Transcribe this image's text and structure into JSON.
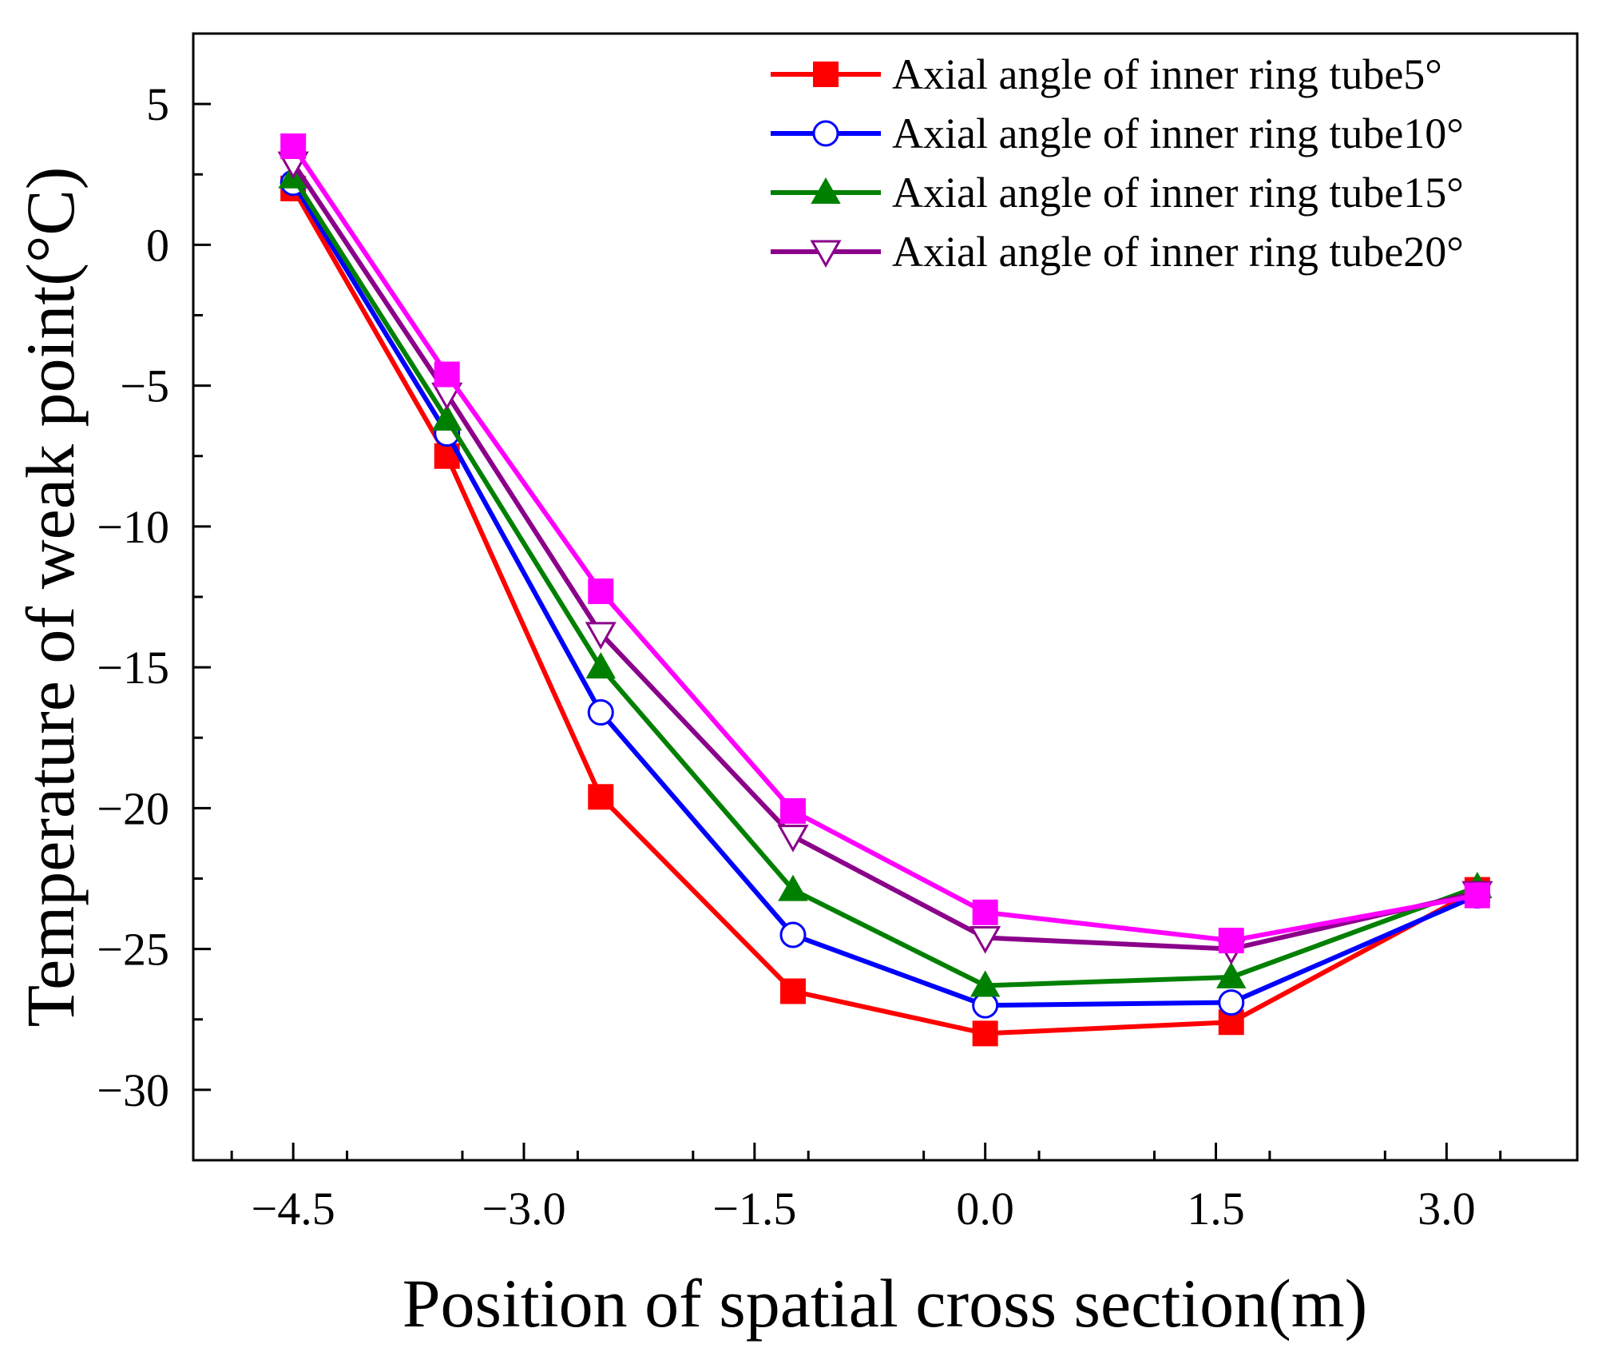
{
  "chart_data": {
    "type": "line",
    "title": "",
    "xlabel": "Position of spatial cross section(m)",
    "ylabel": "Temperature of weak point(°C)",
    "xlim": [
      -5.15,
      3.85
    ],
    "ylim": [
      -32.5,
      7.5
    ],
    "x_ticks": [
      -4.5,
      -3.0,
      -1.5,
      0.0,
      1.5,
      3.0
    ],
    "x_tick_labels": [
      "−4.5",
      "−3.0",
      "−1.5",
      "0.0",
      "1.5",
      "3.0"
    ],
    "y_ticks": [
      5,
      0,
      -5,
      -10,
      -15,
      -20,
      -25,
      -30
    ],
    "y_tick_labels": [
      "5",
      "0",
      "−5",
      "−10",
      "−15",
      "−20",
      "−25",
      "−30"
    ],
    "grid": false,
    "legend_position": "top-right",
    "x": [
      -4.5,
      -3.5,
      -2.5,
      -1.25,
      0.0,
      1.6,
      3.2
    ],
    "series": [
      {
        "name": "Axial angle of inner ring tube5°",
        "color": "#ff0000",
        "marker": "filled-square",
        "values": [
          2.0,
          -7.5,
          -19.6,
          -26.5,
          -28.0,
          -27.6,
          -22.9
        ]
      },
      {
        "name": "Axial angle of inner ring tube10°",
        "color": "#0000ff",
        "marker": "open-circle",
        "values": [
          2.2,
          -6.7,
          -16.6,
          -24.5,
          -27.0,
          -26.9,
          -23.1
        ]
      },
      {
        "name": "Axial angle of inner ring tube15°",
        "color": "#008000",
        "marker": "filled-triangle-up",
        "values": [
          2.4,
          -6.2,
          -15.0,
          -22.9,
          -26.3,
          -26.0,
          -22.8
        ]
      },
      {
        "name": "Axial angle of inner ring tube20°",
        "color": "#8b008b",
        "marker": "open-triangle-down",
        "values": [
          2.9,
          -5.3,
          -13.8,
          -21.0,
          -24.6,
          -25.0,
          -23.0
        ]
      },
      {
        "name": "",
        "color": "#ff00ff",
        "marker": "filled-square",
        "values": [
          3.5,
          -4.6,
          -12.3,
          -20.1,
          -23.7,
          -24.7,
          -23.1
        ]
      }
    ]
  }
}
